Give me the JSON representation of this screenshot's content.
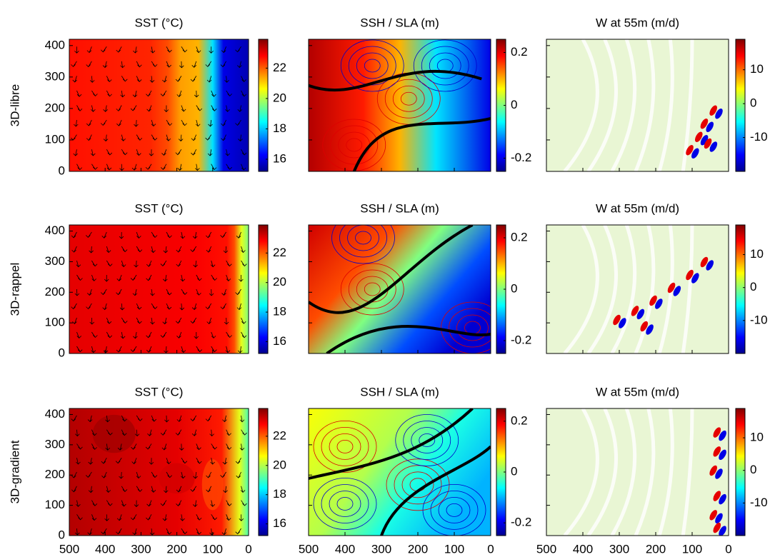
{
  "figure": {
    "rows": [
      "3D-libre",
      "3D-rappel",
      "3D-gradient"
    ],
    "columns": [
      {
        "title": "SST (°C)",
        "clim": [
          15.2,
          23.9
        ],
        "cbar_ticks": [
          16,
          18,
          20,
          22
        ]
      },
      {
        "title": "SSH / SLA (m)",
        "clim": [
          -0.25,
          0.25
        ],
        "cbar_ticks": [
          -0.2,
          0,
          0.2
        ]
      },
      {
        "title": "W at 55m (m/d)",
        "clim": [
          -20,
          19
        ],
        "cbar_ticks": [
          -10,
          0,
          10
        ]
      }
    ],
    "xlim": [
      500,
      0
    ],
    "xticks": [
      500,
      400,
      300,
      200,
      100,
      0
    ],
    "ylim": [
      0,
      420
    ],
    "yticks": [
      0,
      100,
      200,
      300,
      400
    ]
  }
}
